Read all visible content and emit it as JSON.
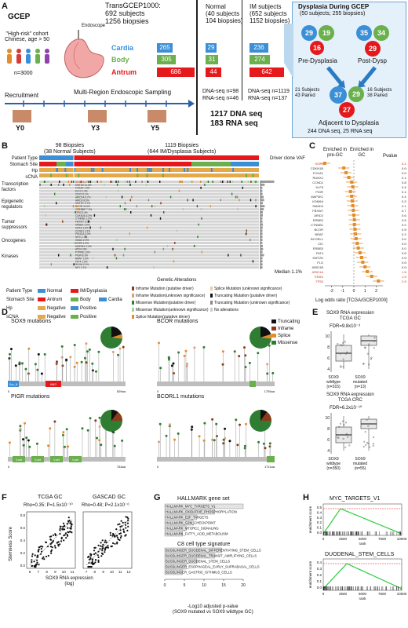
{
  "panelA": {
    "label": "A",
    "gcep": "GCEP",
    "cohort": "\"High-risk\" cohort\nChinese, age > 50",
    "n": "n=3000",
    "endoscope": "Endoscope",
    "title_line1": "TransGCEP1000:",
    "title_line2": "692 subjects",
    "title_line3": "1256 biopsies",
    "sites": [
      {
        "name": "Cardia",
        "n": "265",
        "normal": "29",
        "im": "236",
        "color": "#3a8fd6"
      },
      {
        "name": "Body",
        "n": "305",
        "normal": "31",
        "im": "274",
        "color": "#6ab04c"
      },
      {
        "name": "Antrum",
        "n": "686",
        "normal": "44",
        "im": "642",
        "color": "#e5191c"
      }
    ],
    "normal_h1": "Normal",
    "normal_h2": "(40 subjects",
    "normal_h3": "104 biopsies)",
    "im_h1": "IM subjects",
    "im_h2": "(652 subjects",
    "im_h3": "1152 biopsies)",
    "normal_dna": "DNA-seq n=98",
    "normal_rna": "RNA-seq n=46",
    "im_dna": "DNA-seq n=1119",
    "im_rna": "RNA-seq n=137",
    "recruitment": "Recruitment",
    "sampling": "Multi-Region Endoscopic Sampling",
    "years": [
      "Y0",
      "Y3",
      "Y5"
    ],
    "total_dna": "1217 DNA seq",
    "total_rna": "183 RNA seq",
    "dys_title": "Dysplasia During GCEP",
    "dys_sub": "(50 subjects; 255 biopsies)",
    "pre_dys": "Pre-Dysplasia",
    "post_dys": "Post-Dysp",
    "c_pre": [
      "29",
      "19",
      "16"
    ],
    "c_post": [
      "35",
      "34",
      "29"
    ],
    "paired_left": "21 Subjects\n43 Paired",
    "paired_right": "16 Subjects\n38 Paired",
    "c_adj": [
      "37",
      "29",
      "27"
    ],
    "adjacent": "Adjacent to Dysplasia",
    "dys_total": "244 DNA seq, 25 RNA seq"
  },
  "panelB": {
    "label": "B",
    "left_head": "98 Biopsies\n(38 Normal Subjects)",
    "right_head": "1119 Biopsies\n(644 IM/Dysplasia Subjects)",
    "tracks": [
      "Patient Type",
      "Stomach Site",
      "Hp",
      "sCNA"
    ],
    "vaf_label": "Driver clone VAF",
    "median": "Median 1.1%",
    "genetic_alterations": "Genetic Alterations",
    "categories": [
      "Transcription factors",
      "Epigenetic regulators",
      "Tumor suppressors",
      "Oncogenes",
      "Kinases"
    ],
    "genes": [
      "SOX9 51.7%",
      "KMT2D 11.0%",
      "FOXA2 1.4%",
      "ELF3 1.3%",
      "CDX2 2.1%",
      "ARID1A 6.7%",
      "ARID2 8.5%",
      "KMT2C 3.7%",
      "BCOR 11.0%",
      "CREBBP 7.2%",
      "TP53 3.4%",
      "CDKN2A 3.3%",
      "CTNNB1 1.5%",
      "FBXW7 2.0%",
      "ERBB2 3.6%",
      "KRAS 2.8%",
      "CCND1 1.6%",
      "PIK3CA 2.0%",
      "MYC 1.7%",
      "GNAS 2.0%",
      "EGFR 1.2%",
      "MAP3K1 3.4%",
      "ATM 4.3%",
      "PTPRB 1.9%",
      "PIGR 8.3%",
      "BRAF 1.6%",
      "FAT4 1.9%",
      "RHOA 2.0%",
      "NF1 2.1%"
    ],
    "legend": {
      "patient_type": "Patient Type",
      "stomach_site": "Stomach Site",
      "hp": "Hp",
      "scna": "sCNA",
      "normal": "Normal",
      "im": "IM/Dysplasia",
      "antrum": "Antrum",
      "body": "Body",
      "cardia": "Cardia",
      "negative": "Negative",
      "positive": "Positive",
      "mut": [
        "Inframe Mutation (putative driver)",
        "Inframe Mutation(unknown significance)",
        "Missense Mutation(putative driver)",
        "Missense Mutation(unknown significance)",
        "Splice Mutation(putative driver)",
        "Splice Mutation (unknown significance)",
        "Truncating Mutation (putative driver)",
        "Truncating Mutation (unknown significance)",
        "No alterations"
      ]
    }
  },
  "panelC": {
    "label": "C",
    "enriched_pre": "Enriched in\npre-GC",
    "enriched_gc": "Enriched in\nGC",
    "pvalue": "Pvalue",
    "genes": [
      "SOX9",
      "CDKN1B",
      "FOXA1",
      "RUNX1",
      "CCND1",
      "KLF5",
      "PIGR",
      "MAP3K1",
      "KDM6A",
      "SMAD4",
      "FBXW7",
      "ARID2",
      "ERBB2",
      "CTNNB1",
      "BCOR",
      "BRAF",
      "BCORL1",
      "CIC",
      "ERBB3",
      "FAT4",
      "KMT2D",
      "FLG",
      "ARID1B",
      "ARID1A",
      "KRAS",
      "TP53"
    ],
    "pvals": [
      "6.2x10⁻¹³",
      "0.085",
      "0.026",
      "0.14",
      "0.83",
      "0.45",
      "0.18",
      "0.41",
      "0.25",
      "0.13",
      "0.77",
      "0.62",
      "0.8",
      "0.9",
      "0.96",
      "0.3",
      "0.6",
      "0.052",
      "0.034",
      "0.0023",
      "0.0044",
      "0.002",
      "0.00016",
      "1.5x10⁻⁶",
      "1.9x10⁻¹⁴",
      "2.9x10⁻¹⁴"
    ],
    "log_or": [
      -2.6,
      -0.9,
      -0.7,
      -0.45,
      -0.2,
      -0.1,
      -0.3,
      -0.2,
      -0.15,
      -0.1,
      -0.05,
      0,
      0.05,
      0.05,
      0.1,
      0.15,
      0.2,
      0.3,
      0.4,
      0.55,
      0.7,
      0.8,
      1.0,
      1.2,
      1.6,
      2.2
    ],
    "xlabel": "Log odds ratio [TCGA/GCEP1000]",
    "ticks": [
      "-2",
      "-1",
      "0",
      "1",
      "2"
    ]
  },
  "panelD": {
    "label": "D",
    "plots": [
      {
        "title": "SOX9 mutations",
        "end": "509aa",
        "domains": [
          "Sox_N",
          "HMG"
        ]
      },
      {
        "title": "BCOR mutations",
        "end": "1755aa",
        "domains": []
      },
      {
        "title": "PIGR mutations",
        "end": "764aa",
        "domains": [
          "V-set",
          "V-set",
          "V-set",
          "V-set"
        ]
      },
      {
        "title": "BCORL1 mutations",
        "end": "1711aa",
        "domains": []
      }
    ],
    "legend": [
      "Truncating",
      "Inframe",
      "Splice",
      "Missense"
    ]
  },
  "panelE": {
    "label": "E",
    "top_title": "SOX9 RNA expression\nTCGA GC",
    "top_fdr": "FDR=9.8x10⁻³",
    "bottom_title": "SOX9 RNA expression\nTCGA CRC",
    "bottom_fdr": "FDR=6.2x10⁻¹⁰",
    "top_groups": [
      "SOX9\nwildtype\n(n=315)",
      "SOX9\nmutated\n(n=13)"
    ],
    "bottom_groups": [
      "SOX9\nwildtype\n(n=350)",
      "SOX9\nmutated\n(n=55)"
    ]
  },
  "panelF": {
    "label": "F",
    "left_title": "TCGA GC",
    "left_stat": "Rho=0.35; P=1.5x10⁻¹⁰",
    "right_title": "GASCAD GC",
    "right_stat": "Rho=0.48; P=2.1x10⁻⁶",
    "ylabel": "Stemness Score",
    "xlabel": "SOX9 RNA expression\n(log)"
  },
  "panelG": {
    "label": "G",
    "title1": "HALLMARK gene set",
    "hallmark": [
      "HALLMARK_MYC_TARGETS_V1",
      "HALLMARK_OXIDATIVE_PHOSPHORYLATION",
      "HALLMARK_E2F_TARGETS",
      "HALLMARK_G2M_CHECKPOINT",
      "HALLMARK_MTORC1_SIGNALING",
      "HALLMARK_FATTY_ACID_METABOLISM"
    ],
    "hallmark_vals": [
      22,
      14,
      9,
      8,
      6,
      5
    ],
    "title2": "C8 cell type signature",
    "c8": [
      "BUSSLINGER_DUODENAL_DIFFERENTIATING_STEM_CELLS",
      "BUSSLINGER_DUODENAL_TRANSIT_AMPLIFYING_CELLS",
      "BUSSLINGER_DUODENAL_STEM_CELLS",
      "BUSSLINGER_ESOPHAGEAL_EARLY_SUPRABASAL_CELLS",
      "BUSSLINGER_GASTRIC_ISTHMUS_CELLS"
    ],
    "c8_vals": [
      16,
      14,
      9,
      6,
      5
    ],
    "ticks": [
      "0",
      "5",
      "10",
      "15",
      "20"
    ],
    "xlabel": "-Log10 adjusted p-value\n(SOX9 mutated vs SOX9 wildtype GC)"
  },
  "panelH": {
    "label": "H",
    "top_title": "MYC_TARGETS_V1",
    "bottom_title": "DUODENAL_STEM_CELLS",
    "ylabel": "enrichment score",
    "xlabel": "rank",
    "xticks": [
      "0",
      "2500",
      "5000",
      "7500",
      "10000"
    ],
    "yticks_top": [
      "0.5",
      "0.4",
      "0.3",
      "0.2",
      "0.1",
      "0.0"
    ],
    "yticks_bot": [
      "0.4",
      "0.3",
      "0.2",
      "0.1",
      "0.0"
    ]
  }
}
